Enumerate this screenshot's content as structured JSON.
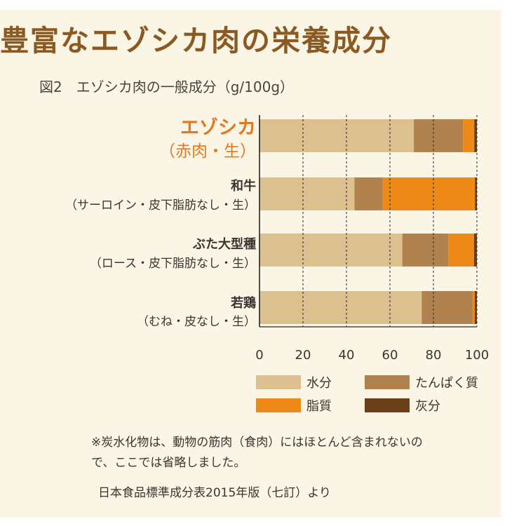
{
  "header": {
    "title": "豊富なエゾシカ肉の栄養成分",
    "figure_title": "図2　エゾシカ肉の一般成分（g/100g）"
  },
  "rows": [
    {
      "name": "エゾシカ",
      "sub": "（赤肉・生）"
    },
    {
      "name": "和牛",
      "sub": "（サーロイン・皮下脂肪なし・生）"
    },
    {
      "name": "ぶた大型種",
      "sub": "（ロース・皮下脂肪なし・生）"
    },
    {
      "name": "若鶏",
      "sub": "（むね・皮なし・生）"
    }
  ],
  "chart_data": {
    "type": "bar",
    "orientation": "horizontal",
    "stacked": true,
    "title": "図2　エゾシカ肉の一般成分（g/100g）",
    "categories": [
      "エゾシカ（赤肉・生）",
      "和牛（サーロイン・皮下脂肪なし・生）",
      "ぶた大型種（ロース・皮下脂肪なし・生）",
      "若鶏（むね・皮なし・生）"
    ],
    "series": [
      {
        "name": "水分",
        "color": "#dcc18f",
        "values": [
          71.0,
          43.7,
          65.7,
          74.6
        ]
      },
      {
        "name": "たんぱく質",
        "color": "#b0824f",
        "values": [
          22.6,
          12.9,
          21.1,
          23.3
        ]
      },
      {
        "name": "脂質",
        "color": "#ee8a18",
        "values": [
          5.2,
          42.5,
          11.9,
          1.1
        ]
      },
      {
        "name": "灰分",
        "color": "#6a3e17",
        "values": [
          1.2,
          0.9,
          1.3,
          1.0
        ]
      }
    ],
    "xlim": [
      0,
      100
    ],
    "xticks": [
      0,
      20,
      40,
      60,
      80,
      100
    ],
    "grid": "vertical dashed",
    "legend_position": "bottom"
  },
  "legend": {
    "items": [
      {
        "label": "水分",
        "color": "#dcc18f"
      },
      {
        "label": "たんぱく質",
        "color": "#b0824f"
      },
      {
        "label": "脂質",
        "color": "#ee8a18"
      },
      {
        "label": "灰分",
        "color": "#6a3e17"
      }
    ]
  },
  "footnote": {
    "line1": "※炭水化物は、動物の筋肉（食肉）にはほとんど含まれないの",
    "line2": "で、ここでは省略しました。"
  },
  "source": "日本食品標準成分表2015年版（七訂）より"
}
